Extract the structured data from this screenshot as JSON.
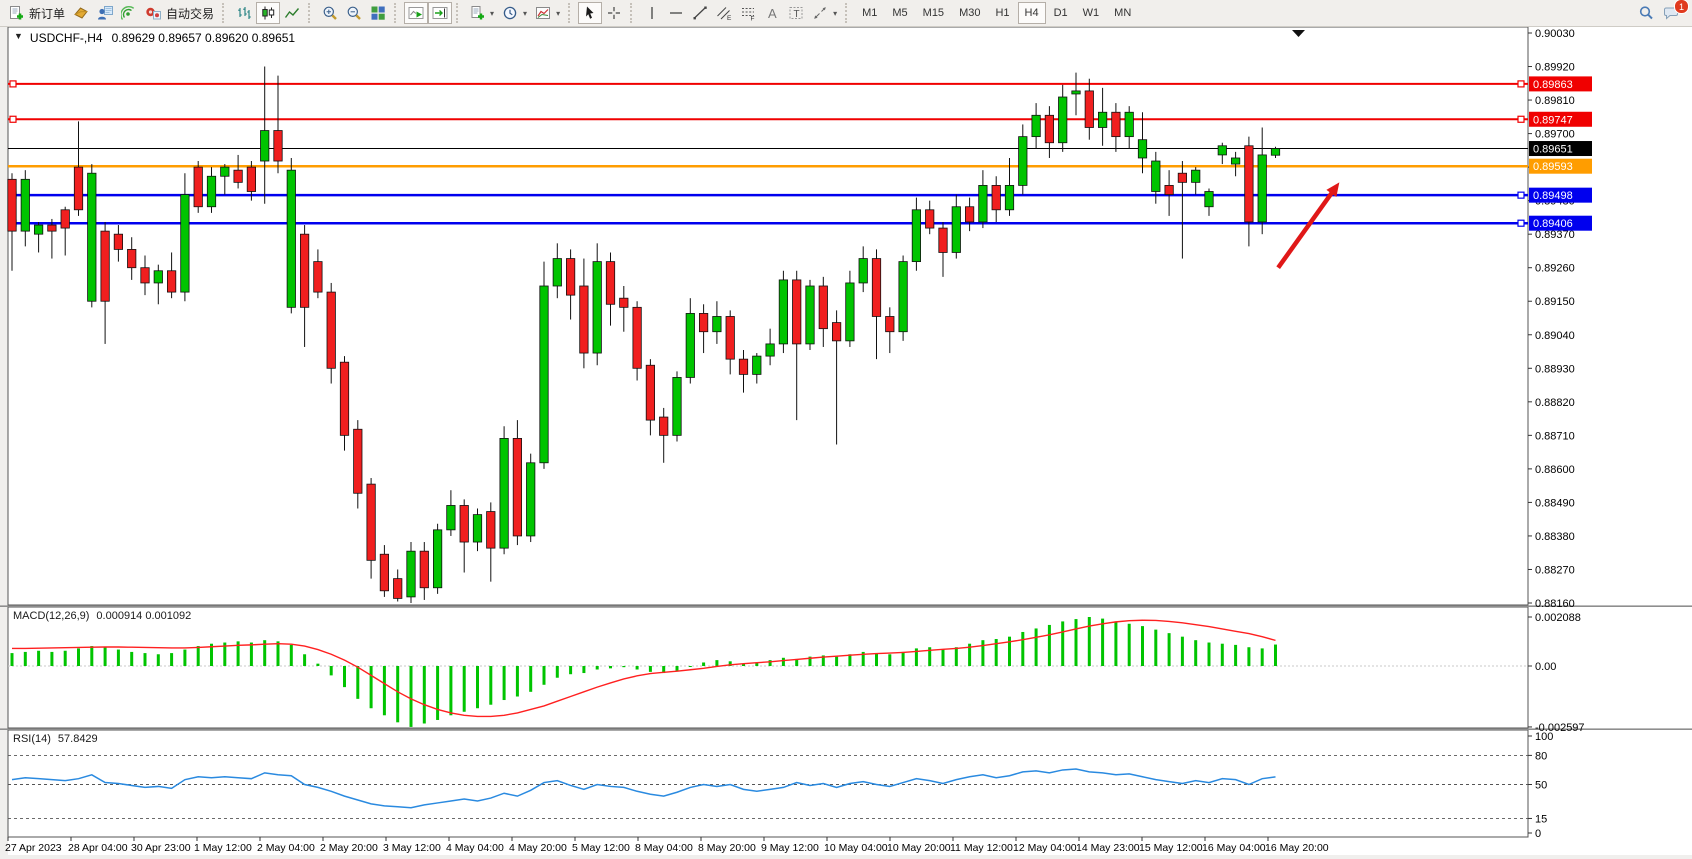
{
  "toolbar": {
    "new_order_label": "新订单",
    "autotrading_label": "自动交易",
    "timeframes": [
      "M1",
      "M5",
      "M15",
      "M30",
      "H1",
      "H4",
      "D1",
      "W1",
      "MN"
    ],
    "active_timeframe": "H4",
    "notification_count": "1",
    "icon_names": [
      "new-order-icon",
      "metaeditor-icon",
      "strategy-tester-icon",
      "signals-icon",
      "autotrading-icon",
      "bar-chart-icon",
      "candlestick-chart-icon",
      "line-chart-icon",
      "zoom-in-icon",
      "zoom-out-icon",
      "tile-windows-icon",
      "auto-scroll-icon",
      "chart-shift-icon",
      "indicators-icon",
      "periods-icon",
      "templates-icon",
      "cursor-icon",
      "crosshair-icon",
      "vertical-line-icon",
      "horizontal-line-icon",
      "trendline-icon",
      "channel-icon",
      "fibonacci-icon",
      "text-icon",
      "text-label-icon",
      "arrows-icon",
      "search-icon",
      "chat-icon"
    ]
  },
  "chart": {
    "title_symbol": "USDCHF-,H4",
    "title_ohlc": "0.89629 0.89657 0.89620 0.89651"
  },
  "chart_data": {
    "type": "candlestick",
    "symbol": "USDCHF-",
    "timeframe": "H4",
    "current_price": 0.89651,
    "current_price_label": "0.89651",
    "current_bar": {
      "open": 0.89629,
      "high": 0.89657,
      "low": 0.8962,
      "close": 0.89651
    },
    "price_axis": {
      "max": 0.9003,
      "min": 0.8816,
      "tick_step": 0.0011,
      "ticks": [
        0.9003,
        0.8992,
        0.8981,
        0.897,
        0.8959,
        0.8948,
        0.8937,
        0.8926,
        0.8915,
        0.8904,
        0.8893,
        0.8882,
        0.8871,
        0.886,
        0.8849,
        0.8838,
        0.8827,
        0.8816
      ]
    },
    "hlines": [
      {
        "label": "0.89863",
        "price": 0.89863,
        "color": "#f00000",
        "width": 2,
        "handles": true,
        "role": "resistance"
      },
      {
        "label": "0.89747",
        "price": 0.89747,
        "color": "#f00000",
        "width": 2,
        "handles": true,
        "role": "resistance"
      },
      {
        "label": "0.89593",
        "price": 0.89593,
        "color": "#ff9d00",
        "width": 2.5,
        "handles": false,
        "role": "pivot"
      },
      {
        "label": "0.89498",
        "price": 0.89498,
        "color": "#0000ee",
        "width": 2.5,
        "handles": true,
        "role": "support"
      },
      {
        "label": "0.89406",
        "price": 0.89406,
        "color": "#0000ee",
        "width": 2.5,
        "handles": true,
        "role": "support"
      }
    ],
    "time_labels": [
      "27 Apr 2023",
      "28 Apr 04:00",
      "30 Apr 23:00",
      "1 May 12:00",
      "2 May 04:00",
      "2 May 20:00",
      "3 May 12:00",
      "4 May 04:00",
      "4 May 20:00",
      "5 May 12:00",
      "8 May 04:00",
      "8 May 20:00",
      "9 May 12:00",
      "10 May 04:00",
      "10 May 20:00",
      "11 May 12:00",
      "12 May 04:00",
      "14 May 23:00",
      "15 May 12:00",
      "16 May 04:00",
      "16 May 20:00"
    ],
    "candles": [
      [
        0.8955,
        0.8957,
        0.8925,
        0.8938
      ],
      [
        0.8938,
        0.8958,
        0.8933,
        0.8955
      ],
      [
        0.8937,
        0.8941,
        0.8931,
        0.894
      ],
      [
        0.894,
        0.8942,
        0.8929,
        0.8938
      ],
      [
        0.8945,
        0.8946,
        0.893,
        0.8939
      ],
      [
        0.8959,
        0.8974,
        0.8943,
        0.8945
      ],
      [
        0.8915,
        0.896,
        0.8913,
        0.8957
      ],
      [
        0.8938,
        0.8941,
        0.8901,
        0.8915
      ],
      [
        0.8937,
        0.894,
        0.8928,
        0.8932
      ],
      [
        0.8932,
        0.8936,
        0.8922,
        0.8926
      ],
      [
        0.8926,
        0.893,
        0.8917,
        0.8921
      ],
      [
        0.8921,
        0.8927,
        0.8914,
        0.8925
      ],
      [
        0.8925,
        0.8931,
        0.8916,
        0.8918
      ],
      [
        0.8918,
        0.8957,
        0.8915,
        0.895
      ],
      [
        0.8959,
        0.8961,
        0.8944,
        0.8946
      ],
      [
        0.8946,
        0.8959,
        0.8944,
        0.8956
      ],
      [
        0.8956,
        0.896,
        0.895,
        0.8959
      ],
      [
        0.8958,
        0.8963,
        0.8952,
        0.8954
      ],
      [
        0.8959,
        0.8961,
        0.8948,
        0.8951
      ],
      [
        0.8961,
        0.8992,
        0.8947,
        0.8971
      ],
      [
        0.8971,
        0.8989,
        0.8957,
        0.8961
      ],
      [
        0.8913,
        0.8962,
        0.8911,
        0.8958
      ],
      [
        0.8937,
        0.894,
        0.89,
        0.8913
      ],
      [
        0.8928,
        0.8932,
        0.8916,
        0.8918
      ],
      [
        0.8918,
        0.8921,
        0.8888,
        0.8893
      ],
      [
        0.8895,
        0.8897,
        0.8866,
        0.8871
      ],
      [
        0.8873,
        0.8876,
        0.8847,
        0.8852
      ],
      [
        0.8855,
        0.8857,
        0.8824,
        0.883
      ],
      [
        0.8832,
        0.8835,
        0.8818,
        0.882
      ],
      [
        0.8824,
        0.8827,
        0.88165,
        0.88175
      ],
      [
        0.8818,
        0.8836,
        0.8816,
        0.8833
      ],
      [
        0.8833,
        0.8836,
        0.8817,
        0.8821
      ],
      [
        0.8821,
        0.8842,
        0.8819,
        0.884
      ],
      [
        0.884,
        0.8853,
        0.8838,
        0.8848
      ],
      [
        0.8848,
        0.885,
        0.8826,
        0.8836
      ],
      [
        0.8836,
        0.8847,
        0.8833,
        0.8845
      ],
      [
        0.8846,
        0.8849,
        0.8823,
        0.8834
      ],
      [
        0.8834,
        0.8874,
        0.8832,
        0.887
      ],
      [
        0.887,
        0.8876,
        0.8835,
        0.8838
      ],
      [
        0.8838,
        0.8865,
        0.8836,
        0.8862
      ],
      [
        0.8862,
        0.8928,
        0.886,
        0.892
      ],
      [
        0.892,
        0.8934,
        0.8916,
        0.8929
      ],
      [
        0.8929,
        0.8932,
        0.8909,
        0.8917
      ],
      [
        0.892,
        0.8929,
        0.8893,
        0.8898
      ],
      [
        0.8898,
        0.8934,
        0.8894,
        0.8928
      ],
      [
        0.8928,
        0.8931,
        0.8907,
        0.8914
      ],
      [
        0.8916,
        0.892,
        0.8905,
        0.8913
      ],
      [
        0.8913,
        0.8915,
        0.8889,
        0.8893
      ],
      [
        0.8894,
        0.8896,
        0.8871,
        0.8876
      ],
      [
        0.8877,
        0.888,
        0.8862,
        0.8871
      ],
      [
        0.8871,
        0.8892,
        0.8869,
        0.889
      ],
      [
        0.889,
        0.8916,
        0.8888,
        0.8911
      ],
      [
        0.8911,
        0.8914,
        0.8898,
        0.8905
      ],
      [
        0.8905,
        0.8915,
        0.8901,
        0.891
      ],
      [
        0.891,
        0.8912,
        0.8891,
        0.8896
      ],
      [
        0.8896,
        0.8899,
        0.8885,
        0.8891
      ],
      [
        0.8891,
        0.8898,
        0.8888,
        0.8897
      ],
      [
        0.8897,
        0.8906,
        0.8894,
        0.8901
      ],
      [
        0.8901,
        0.8925,
        0.8898,
        0.8922
      ],
      [
        0.8922,
        0.8925,
        0.8876,
        0.8901
      ],
      [
        0.8901,
        0.8922,
        0.8899,
        0.892
      ],
      [
        0.892,
        0.8923,
        0.89,
        0.8906
      ],
      [
        0.8908,
        0.8912,
        0.8868,
        0.8902
      ],
      [
        0.8902,
        0.8925,
        0.89,
        0.8921
      ],
      [
        0.8921,
        0.8933,
        0.8918,
        0.8929
      ],
      [
        0.8929,
        0.8932,
        0.8896,
        0.891
      ],
      [
        0.891,
        0.8913,
        0.8898,
        0.8905
      ],
      [
        0.8905,
        0.893,
        0.8902,
        0.8928
      ],
      [
        0.8928,
        0.8949,
        0.8925,
        0.8945
      ],
      [
        0.8945,
        0.8948,
        0.8937,
        0.8939
      ],
      [
        0.8939,
        0.8941,
        0.8923,
        0.8931
      ],
      [
        0.8931,
        0.895,
        0.8929,
        0.8946
      ],
      [
        0.8946,
        0.8949,
        0.8938,
        0.8941
      ],
      [
        0.8941,
        0.8958,
        0.8939,
        0.8953
      ],
      [
        0.8953,
        0.8956,
        0.8941,
        0.8945
      ],
      [
        0.8945,
        0.8962,
        0.8943,
        0.8953
      ],
      [
        0.8953,
        0.8973,
        0.895,
        0.8969
      ],
      [
        0.8969,
        0.898,
        0.8965,
        0.8976
      ],
      [
        0.8976,
        0.8979,
        0.8962,
        0.8967
      ],
      [
        0.8967,
        0.8986,
        0.8964,
        0.8982
      ],
      [
        0.8983,
        0.899,
        0.8976,
        0.8984
      ],
      [
        0.8984,
        0.8988,
        0.8968,
        0.8972
      ],
      [
        0.8972,
        0.8985,
        0.8966,
        0.8977
      ],
      [
        0.8977,
        0.898,
        0.8964,
        0.8969
      ],
      [
        0.8969,
        0.8979,
        0.8965,
        0.8977
      ],
      [
        0.8962,
        0.8977,
        0.8957,
        0.8968
      ],
      [
        0.8951,
        0.8964,
        0.8947,
        0.8961
      ],
      [
        0.8953,
        0.8958,
        0.8943,
        0.895
      ],
      [
        0.8957,
        0.8961,
        0.8929,
        0.8954
      ],
      [
        0.8954,
        0.8959,
        0.895,
        0.8958
      ],
      [
        0.8946,
        0.8952,
        0.8943,
        0.8951
      ],
      [
        0.8963,
        0.8967,
        0.896,
        0.8966
      ],
      [
        0.896,
        0.8964,
        0.8956,
        0.8962
      ],
      [
        0.8966,
        0.8969,
        0.8933,
        0.8941
      ],
      [
        0.8941,
        0.8972,
        0.8937,
        0.8963
      ],
      [
        0.89629,
        0.89657,
        0.8962,
        0.89651
      ]
    ],
    "macd": {
      "label": "MACD(12,26,9)",
      "values_text": "0.000914 0.001092",
      "ticks": [
        {
          "v": 0.002088,
          "label": "0.002088"
        },
        {
          "v": 0,
          "label": "0.00"
        },
        {
          "v": -0.002597,
          "label": "-0.002597"
        }
      ],
      "histogram": [
        0.00055,
        0.0006,
        0.00065,
        0.0006,
        0.00065,
        0.00075,
        0.00085,
        0.0008,
        0.0007,
        0.0006,
        0.00055,
        0.0005,
        0.00055,
        0.0007,
        0.00085,
        0.00095,
        0.001,
        0.00105,
        0.001,
        0.0011,
        0.00105,
        0.0009,
        0.0005,
        0.0001,
        -0.0004,
        -0.0009,
        -0.0014,
        -0.0018,
        -0.0021,
        -0.0024,
        -0.002597,
        -0.00245,
        -0.0023,
        -0.0021,
        -0.00195,
        -0.0018,
        -0.00165,
        -0.00145,
        -0.0013,
        -0.0011,
        -0.0008,
        -0.0005,
        -0.00035,
        -0.0003,
        -0.00015,
        -0.0001,
        -5e-05,
        -0.00015,
        -0.00025,
        -0.0003,
        -0.0002,
        0,
        0.00015,
        0.00025,
        0.0002,
        0.0001,
        0.00015,
        0.00025,
        0.00035,
        0.0003,
        0.0004,
        0.00045,
        0.0004,
        0.0005,
        0.0006,
        0.00055,
        0.0005,
        0.0006,
        0.00075,
        0.0008,
        0.0007,
        0.0008,
        0.00095,
        0.0011,
        0.00115,
        0.00125,
        0.00145,
        0.0016,
        0.00175,
        0.0019,
        0.002,
        0.002088,
        0.00202,
        0.0019,
        0.0018,
        0.0017,
        0.00155,
        0.0014,
        0.00125,
        0.0011,
        0.001,
        0.00095,
        0.0009,
        0.0008,
        0.00075,
        0.000914
      ],
      "signal": [
        0.00075,
        0.00075,
        0.00076,
        0.00077,
        0.00078,
        0.00079,
        0.0008,
        0.00081,
        0.00081,
        0.0008,
        0.00079,
        0.00078,
        0.00077,
        0.00077,
        0.00079,
        0.00082,
        0.00085,
        0.00088,
        0.0009,
        0.00093,
        0.00095,
        0.00093,
        0.00085,
        0.0007,
        0.0005,
        0.00025,
        -5e-05,
        -0.0004,
        -0.00075,
        -0.0011,
        -0.0014,
        -0.00165,
        -0.00185,
        -0.002,
        -0.0021,
        -0.00215,
        -0.00215,
        -0.0021,
        -0.002,
        -0.00185,
        -0.0017,
        -0.0015,
        -0.0013,
        -0.0011,
        -0.0009,
        -0.00072,
        -0.00055,
        -0.00042,
        -0.00032,
        -0.00027,
        -0.00022,
        -0.00016,
        -0.0001,
        -2e-05,
        5e-05,
        0.0001,
        0.00014,
        0.00018,
        0.00023,
        0.00028,
        0.00033,
        0.00038,
        0.00042,
        0.00046,
        0.0005,
        0.00053,
        0.00055,
        0.00058,
        0.00062,
        0.00067,
        0.00071,
        0.00075,
        0.0008,
        0.00087,
        0.00095,
        0.00103,
        0.00112,
        0.00122,
        0.00133,
        0.00145,
        0.00158,
        0.0017,
        0.0018,
        0.00188,
        0.00193,
        0.00195,
        0.00194,
        0.0019,
        0.00184,
        0.00176,
        0.00168,
        0.00158,
        0.00148,
        0.00138,
        0.00125,
        0.001092
      ]
    },
    "rsi": {
      "label": "RSI(14)",
      "value_text": "57.8429",
      "ticks": [
        100,
        80,
        50,
        15,
        0
      ],
      "levels": [
        80,
        50,
        15
      ],
      "series": [
        55,
        57,
        56,
        55,
        54,
        56,
        60,
        52,
        51,
        49,
        47,
        48,
        46,
        55,
        58,
        57,
        58,
        57,
        56,
        62,
        60,
        59,
        50,
        47,
        43,
        38,
        34,
        30,
        28,
        27,
        26,
        29,
        31,
        33,
        35,
        33,
        36,
        41,
        38,
        44,
        52,
        54,
        49,
        45,
        50,
        48,
        47,
        43,
        40,
        38,
        42,
        47,
        50,
        48,
        50,
        45,
        43,
        45,
        47,
        52,
        49,
        51,
        47,
        51,
        53,
        50,
        48,
        52,
        56,
        54,
        51,
        55,
        58,
        60,
        57,
        59,
        63,
        64,
        62,
        65,
        66,
        63,
        62,
        60,
        61,
        58,
        55,
        53,
        51,
        54,
        52,
        56,
        55,
        50,
        56,
        57.84
      ]
    },
    "annotations": {
      "arrow": {
        "from_bar": 95.2,
        "from_price": 0.8926,
        "to_bar": 99.8,
        "to_price": 0.8954,
        "color": "#e01818"
      }
    }
  }
}
